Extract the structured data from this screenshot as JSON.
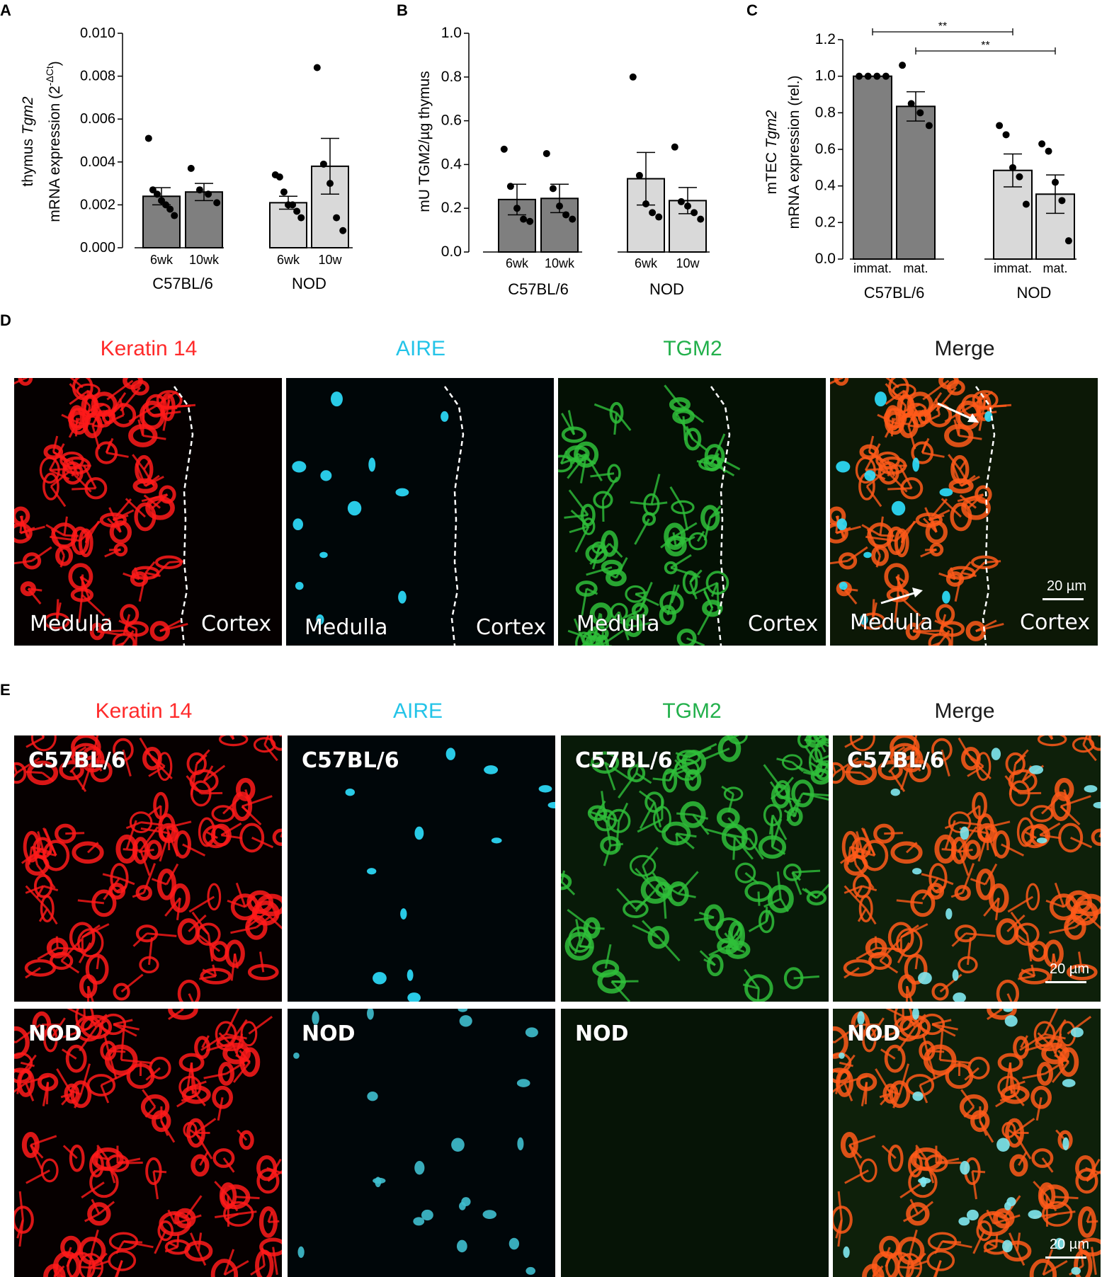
{
  "panels": {
    "A": {
      "letter": "A"
    },
    "B": {
      "letter": "B"
    },
    "C": {
      "letter": "C"
    },
    "D": {
      "letter": "D"
    },
    "E": {
      "letter": "E"
    }
  },
  "chart_data": [
    {
      "type": "bar",
      "panel": "A",
      "ylabel_line1_pre": "thymus ",
      "ylabel_line1_italic": "Tgm2",
      "ylabel_line2": "mRNA expression (2",
      "ylabel_sup": "-ΔCt",
      "ylabel_close": ")",
      "ylim": [
        0,
        0.01
      ],
      "yticks": [
        "0.000",
        "0.002",
        "0.004",
        "0.006",
        "0.008",
        "0.010"
      ],
      "ytick_values": [
        0,
        0.002,
        0.004,
        0.006,
        0.008,
        0.01
      ],
      "categories": [
        "6wk",
        "10wk",
        "6wk",
        "10w"
      ],
      "groups": [
        {
          "name": "C57BL/6",
          "bars": [
            0,
            1
          ]
        },
        {
          "name": "NOD",
          "bars": [
            2,
            3
          ]
        }
      ],
      "values": [
        0.0024,
        0.0026,
        0.0021,
        0.0038
      ],
      "sem": [
        0.0004,
        0.0004,
        0.0003,
        0.0013
      ],
      "colors": [
        "#7f7f7f",
        "#7f7f7f",
        "#d9d9d9",
        "#d9d9d9"
      ],
      "points": [
        [
          0.0051,
          0.0027,
          0.0025,
          0.0022,
          0.002,
          0.0018,
          0.0015
        ],
        [
          0.0037,
          0.0027,
          0.0025,
          0.0021
        ],
        [
          0.0034,
          0.0033,
          0.0026,
          0.002,
          0.002,
          0.0017,
          0.0014
        ],
        [
          0.0084,
          0.0039,
          0.003,
          0.0014,
          0.0008
        ]
      ]
    },
    {
      "type": "bar",
      "panel": "B",
      "ylabel": "mU TGM2/µg thymus",
      "ylim": [
        0,
        1.0
      ],
      "yticks": [
        "0.0",
        "0.2",
        "0.4",
        "0.6",
        "0.8",
        "1.0"
      ],
      "ytick_values": [
        0,
        0.2,
        0.4,
        0.6,
        0.8,
        1.0
      ],
      "categories": [
        "6wk",
        "10wk",
        "6wk",
        "10w"
      ],
      "groups": [
        {
          "name": "C57BL/6",
          "bars": [
            0,
            1
          ]
        },
        {
          "name": "NOD",
          "bars": [
            2,
            3
          ]
        }
      ],
      "values": [
        0.24,
        0.245,
        0.335,
        0.235
      ],
      "sem": [
        0.07,
        0.065,
        0.12,
        0.06
      ],
      "colors": [
        "#7f7f7f",
        "#7f7f7f",
        "#d9d9d9",
        "#d9d9d9"
      ],
      "points": [
        [
          0.47,
          0.3,
          0.2,
          0.15,
          0.14
        ],
        [
          0.45,
          0.29,
          0.21,
          0.17,
          0.15
        ],
        [
          0.8,
          0.35,
          0.22,
          0.18,
          0.16
        ],
        [
          0.48,
          0.23,
          0.21,
          0.18,
          0.15
        ]
      ]
    },
    {
      "type": "bar",
      "panel": "C",
      "ylabel_line1_pre": "mTEC ",
      "ylabel_line1_italic": "Tgm2",
      "ylabel_line2": "mRNA expression (rel.)",
      "ylim": [
        0,
        1.2
      ],
      "yticks": [
        "0.0",
        "0.2",
        "0.4",
        "0.6",
        "0.8",
        "1.0",
        "1.2"
      ],
      "ytick_values": [
        0,
        0.2,
        0.4,
        0.6,
        0.8,
        1.0,
        1.2
      ],
      "categories": [
        "immat.",
        "mat.",
        "immat.",
        "mat."
      ],
      "groups": [
        {
          "name": "C57BL/6",
          "bars": [
            0,
            1
          ]
        },
        {
          "name": "NOD",
          "bars": [
            2,
            3
          ]
        }
      ],
      "values": [
        1.0,
        0.835,
        0.485,
        0.355
      ],
      "sem": [
        0.0,
        0.08,
        0.09,
        0.105
      ],
      "colors": [
        "#7f7f7f",
        "#7f7f7f",
        "#d9d9d9",
        "#d9d9d9"
      ],
      "points": [
        [
          1.0,
          1.0,
          1.0,
          1.0
        ],
        [
          1.06,
          0.85,
          0.8,
          0.73
        ],
        [
          0.73,
          0.68,
          0.5,
          0.45,
          0.3
        ],
        [
          0.63,
          0.59,
          0.42,
          0.32,
          0.1
        ]
      ],
      "significance": [
        {
          "from": 0,
          "to": 2,
          "label": "**"
        },
        {
          "from": 1,
          "to": 3,
          "label": "**"
        }
      ]
    }
  ],
  "D": {
    "channels": [
      {
        "label": "Keratin 14",
        "color": "#ff2a2a"
      },
      {
        "label": "AIRE",
        "color": "#24c4e8"
      },
      {
        "label": "TGM2",
        "color": "#22b04b"
      },
      {
        "label": "Merge",
        "color": "#1a1a1a"
      }
    ],
    "region_left": "Medulla",
    "region_right": "Cortex",
    "scale": "20 µm"
  },
  "E": {
    "channels": [
      {
        "label": "Keratin 14",
        "color": "#ff2a2a"
      },
      {
        "label": "AIRE",
        "color": "#24c4e8"
      },
      {
        "label": "TGM2",
        "color": "#22b04b"
      },
      {
        "label": "Merge",
        "color": "#1a1a1a"
      }
    ],
    "rows": [
      {
        "label": "C57BL/6"
      },
      {
        "label": "NOD"
      }
    ],
    "scale": "20 µm"
  }
}
